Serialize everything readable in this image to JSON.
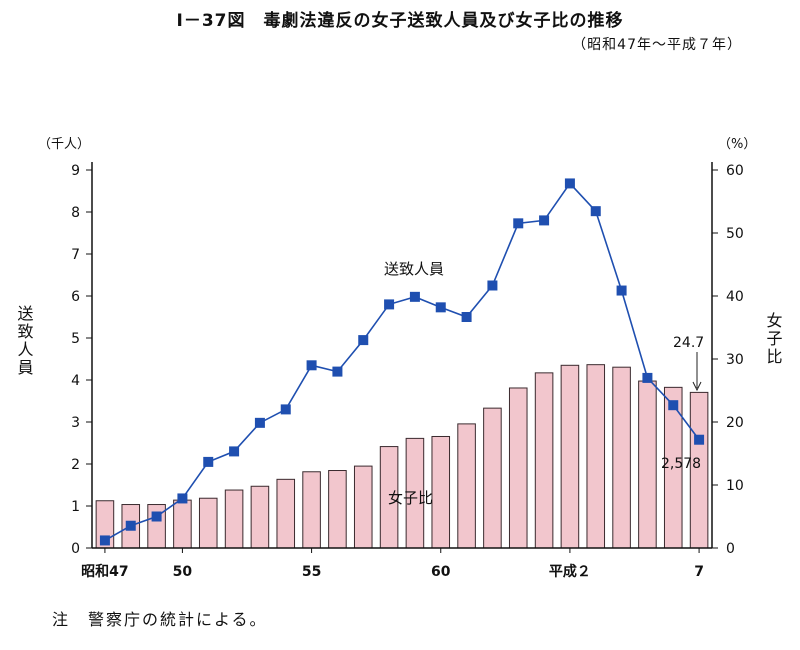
{
  "figure": {
    "title": "Ⅰ－37図　毒劇法違反の女子送致人員及び女子比の推移",
    "subtitle": "（昭和47年～平成７年）",
    "note": "注　警察庁の統計による。"
  },
  "chart_data": {
    "type": "bar+line",
    "left_axis": {
      "unit": "（千人）",
      "label": "送致人員",
      "ylim": [
        0,
        9
      ],
      "ticks": [
        "0",
        "1",
        "2",
        "3",
        "4",
        "5",
        "6",
        "7",
        "8",
        "9"
      ]
    },
    "right_axis": {
      "unit": "（%）",
      "label": "女子比",
      "ylim": [
        0,
        60
      ],
      "ticks": [
        "0",
        "10",
        "20",
        "30",
        "40",
        "50",
        "60"
      ]
    },
    "x_tick_labels": [
      {
        "index": 0,
        "label": "昭和47"
      },
      {
        "index": 3,
        "label": "50"
      },
      {
        "index": 8,
        "label": "55"
      },
      {
        "index": 13,
        "label": "60"
      },
      {
        "index": 18,
        "label": "平成２"
      },
      {
        "index": 23,
        "label": "7"
      }
    ],
    "categories": [
      "S47",
      "S48",
      "S49",
      "S50",
      "S51",
      "S52",
      "S53",
      "S54",
      "S55",
      "S56",
      "S57",
      "S58",
      "S59",
      "S60",
      "S61",
      "S62",
      "S63",
      "H1",
      "H2",
      "H3",
      "H4",
      "H5",
      "H6",
      "H7"
    ],
    "series": [
      {
        "name": "女子比",
        "type": "bar",
        "axis": "right",
        "color": "#f2c6cd",
        "values": [
          7.5,
          6.9,
          6.9,
          7.6,
          7.9,
          9.2,
          9.8,
          10.9,
          12.1,
          12.3,
          13.0,
          16.1,
          17.4,
          17.7,
          19.7,
          22.2,
          25.4,
          27.8,
          29.0,
          29.1,
          28.7,
          26.5,
          25.5,
          24.7
        ]
      },
      {
        "name": "送致人員",
        "type": "line",
        "axis": "left",
        "color": "#1f4fb0",
        "values": [
          0.18,
          0.53,
          0.75,
          1.18,
          2.05,
          2.3,
          2.98,
          3.3,
          4.35,
          4.2,
          4.95,
          5.8,
          5.98,
          5.73,
          5.5,
          6.25,
          7.73,
          7.8,
          8.68,
          8.02,
          6.13,
          4.05,
          3.4,
          2.578
        ]
      }
    ],
    "annotations": [
      {
        "text": "送致人員",
        "series": "送致人員"
      },
      {
        "text": "女子比",
        "series": "女子比"
      },
      {
        "text": "24.7",
        "series": "女子比",
        "index": 23
      },
      {
        "text": "2,578",
        "series": "送致人員",
        "index": 23
      }
    ],
    "grid": false
  }
}
